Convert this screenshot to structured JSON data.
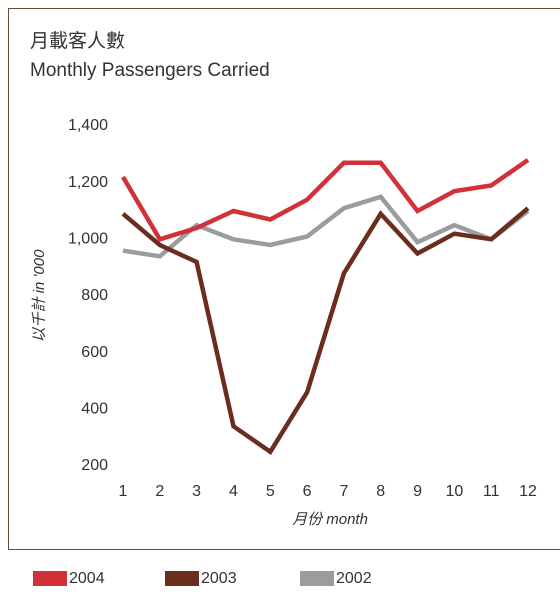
{
  "chart_data": {
    "type": "line",
    "title": "月載客人數",
    "subtitle": "Monthly Passengers Carried",
    "y_label": "以千計 in '000",
    "x_label": "月份 month",
    "categories": [
      "1",
      "2",
      "3",
      "4",
      "5",
      "6",
      "7",
      "8",
      "9",
      "10",
      "11",
      "12"
    ],
    "series": [
      {
        "name": "2004",
        "color": "#d1323a",
        "values": [
          1220,
          1000,
          1040,
          1100,
          1070,
          1140,
          1270,
          1270,
          1100,
          1170,
          1190,
          1280
        ]
      },
      {
        "name": "2003",
        "color": "#6b2d1e",
        "values": [
          1090,
          980,
          920,
          340,
          250,
          460,
          880,
          1090,
          950,
          1020,
          1000,
          1110
        ]
      },
      {
        "name": "2002",
        "color": "#9a9c9d",
        "values": [
          960,
          940,
          1050,
          1000,
          980,
          1010,
          1110,
          1150,
          990,
          1050,
          1000,
          1100
        ]
      }
    ],
    "ylim": [
      200,
      1400
    ],
    "yticks": [
      200,
      400,
      600,
      800,
      {
        "value": 1000,
        "label": "1,000"
      },
      {
        "value": 1200,
        "label": "1,200"
      },
      {
        "value": 1400,
        "label": "1,400"
      }
    ],
    "grid": false,
    "legend": "bottom"
  }
}
